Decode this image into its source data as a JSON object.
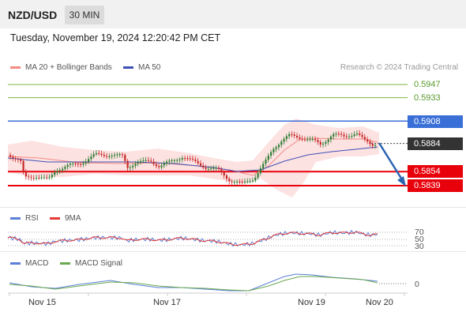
{
  "header": {
    "symbol": "NZD/USD",
    "timeframe": "30 MIN"
  },
  "datetime": "Tuesday, November 19, 2024 12:20:42 PM CET",
  "legend": {
    "ma20_bb": "MA 20 + Bollinger Bands",
    "ma50": "MA 50",
    "credit": "Research © 2024 Trading Central"
  },
  "levels": {
    "r3": "0.5947",
    "r2": "0.5933",
    "r1": "0.5908",
    "last": "0.5884",
    "s1": "0.5854",
    "s2": "0.5839"
  },
  "rsi": {
    "label": "RSI",
    "ma_label": "9MA",
    "ticks": [
      "70",
      "50",
      "30"
    ]
  },
  "macd": {
    "label": "MACD",
    "signal_label": "MACD Signal",
    "zero": "0"
  },
  "xaxis": [
    "Nov 15",
    "Nov 17",
    "Nov 19",
    "Nov 20"
  ],
  "colors": {
    "support": "#e8000b",
    "pivot": "#3a6fd8",
    "resistance": "#7cb342",
    "last_price_bg": "#333333",
    "ma20": "#f28b82",
    "ma50": "#3f51b5",
    "bollinger_fill": "#fde2e2",
    "candle_up": "#2e7d32",
    "candle_down": "#c62828",
    "rsi": "#5b7fd6",
    "rsi_ma": "#e53935",
    "macd": "#5b7fd6",
    "macd_signal": "#6aa84f",
    "arrow": "#2a64b0"
  }
}
